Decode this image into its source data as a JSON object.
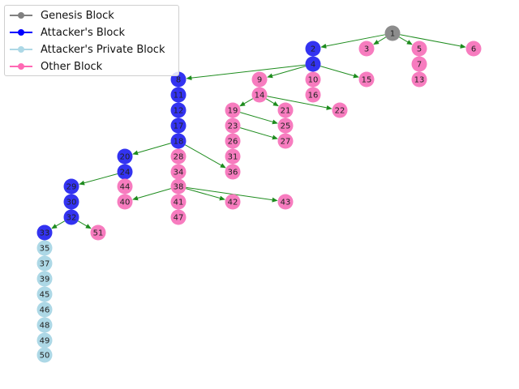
{
  "legend": {
    "items": [
      {
        "label": "Genesis Block",
        "color": "#808080"
      },
      {
        "label": "Attacker's Block",
        "color": "#0000ff"
      },
      {
        "label": "Attacker's Private Block",
        "color": "#add8e6"
      },
      {
        "label": "Other Block",
        "color": "#ff69b4"
      }
    ]
  },
  "colors": {
    "genesis": "#8c8c8c",
    "attacker": "#2828f0",
    "private": "#add8e6",
    "other": "#f77cbf",
    "edge": "#1e8c1e"
  },
  "blocks": [
    {
      "id": "1",
      "type": "genesis"
    },
    {
      "id": "2",
      "type": "attacker"
    },
    {
      "id": "3",
      "type": "other"
    },
    {
      "id": "5",
      "type": "other"
    },
    {
      "id": "6",
      "type": "other"
    },
    {
      "id": "4",
      "type": "attacker"
    },
    {
      "id": "7",
      "type": "other"
    },
    {
      "id": "8",
      "type": "attacker"
    },
    {
      "id": "9",
      "type": "other"
    },
    {
      "id": "10",
      "type": "other"
    },
    {
      "id": "15",
      "type": "other"
    },
    {
      "id": "13",
      "type": "other"
    },
    {
      "id": "11",
      "type": "attacker"
    },
    {
      "id": "14",
      "type": "other"
    },
    {
      "id": "16",
      "type": "other"
    },
    {
      "id": "12",
      "type": "attacker"
    },
    {
      "id": "19",
      "type": "other"
    },
    {
      "id": "21",
      "type": "other"
    },
    {
      "id": "22",
      "type": "other"
    },
    {
      "id": "17",
      "type": "attacker"
    },
    {
      "id": "23",
      "type": "other"
    },
    {
      "id": "25",
      "type": "other"
    },
    {
      "id": "18",
      "type": "attacker"
    },
    {
      "id": "26",
      "type": "other"
    },
    {
      "id": "27",
      "type": "other"
    },
    {
      "id": "20",
      "type": "attacker"
    },
    {
      "id": "28",
      "type": "other"
    },
    {
      "id": "31",
      "type": "other"
    },
    {
      "id": "24",
      "type": "attacker"
    },
    {
      "id": "34",
      "type": "other"
    },
    {
      "id": "36",
      "type": "other"
    },
    {
      "id": "29",
      "type": "attacker"
    },
    {
      "id": "44",
      "type": "other"
    },
    {
      "id": "38",
      "type": "other"
    },
    {
      "id": "30",
      "type": "attacker"
    },
    {
      "id": "40",
      "type": "other"
    },
    {
      "id": "41",
      "type": "other"
    },
    {
      "id": "42",
      "type": "other"
    },
    {
      "id": "43",
      "type": "other"
    },
    {
      "id": "32",
      "type": "attacker"
    },
    {
      "id": "47",
      "type": "other"
    },
    {
      "id": "33",
      "type": "attacker"
    },
    {
      "id": "51",
      "type": "other"
    },
    {
      "id": "35",
      "type": "private"
    },
    {
      "id": "37",
      "type": "private"
    },
    {
      "id": "39",
      "type": "private"
    },
    {
      "id": "45",
      "type": "private"
    },
    {
      "id": "46",
      "type": "private"
    },
    {
      "id": "48",
      "type": "private"
    },
    {
      "id": "49",
      "type": "private"
    },
    {
      "id": "50",
      "type": "private"
    }
  ],
  "edges": [
    [
      "1",
      "2"
    ],
    [
      "1",
      "3"
    ],
    [
      "1",
      "5"
    ],
    [
      "1",
      "6"
    ],
    [
      "4",
      "8"
    ],
    [
      "4",
      "9"
    ],
    [
      "4",
      "16"
    ],
    [
      "4",
      "15"
    ],
    [
      "14",
      "19"
    ],
    [
      "14",
      "21"
    ],
    [
      "14",
      "22"
    ],
    [
      "19",
      "25"
    ],
    [
      "23",
      "27"
    ],
    [
      "18",
      "20"
    ],
    [
      "18",
      "36"
    ],
    [
      "24",
      "29"
    ],
    [
      "38",
      "40"
    ],
    [
      "38",
      "42"
    ],
    [
      "38",
      "43"
    ],
    [
      "32",
      "33"
    ],
    [
      "32",
      "51"
    ]
  ]
}
